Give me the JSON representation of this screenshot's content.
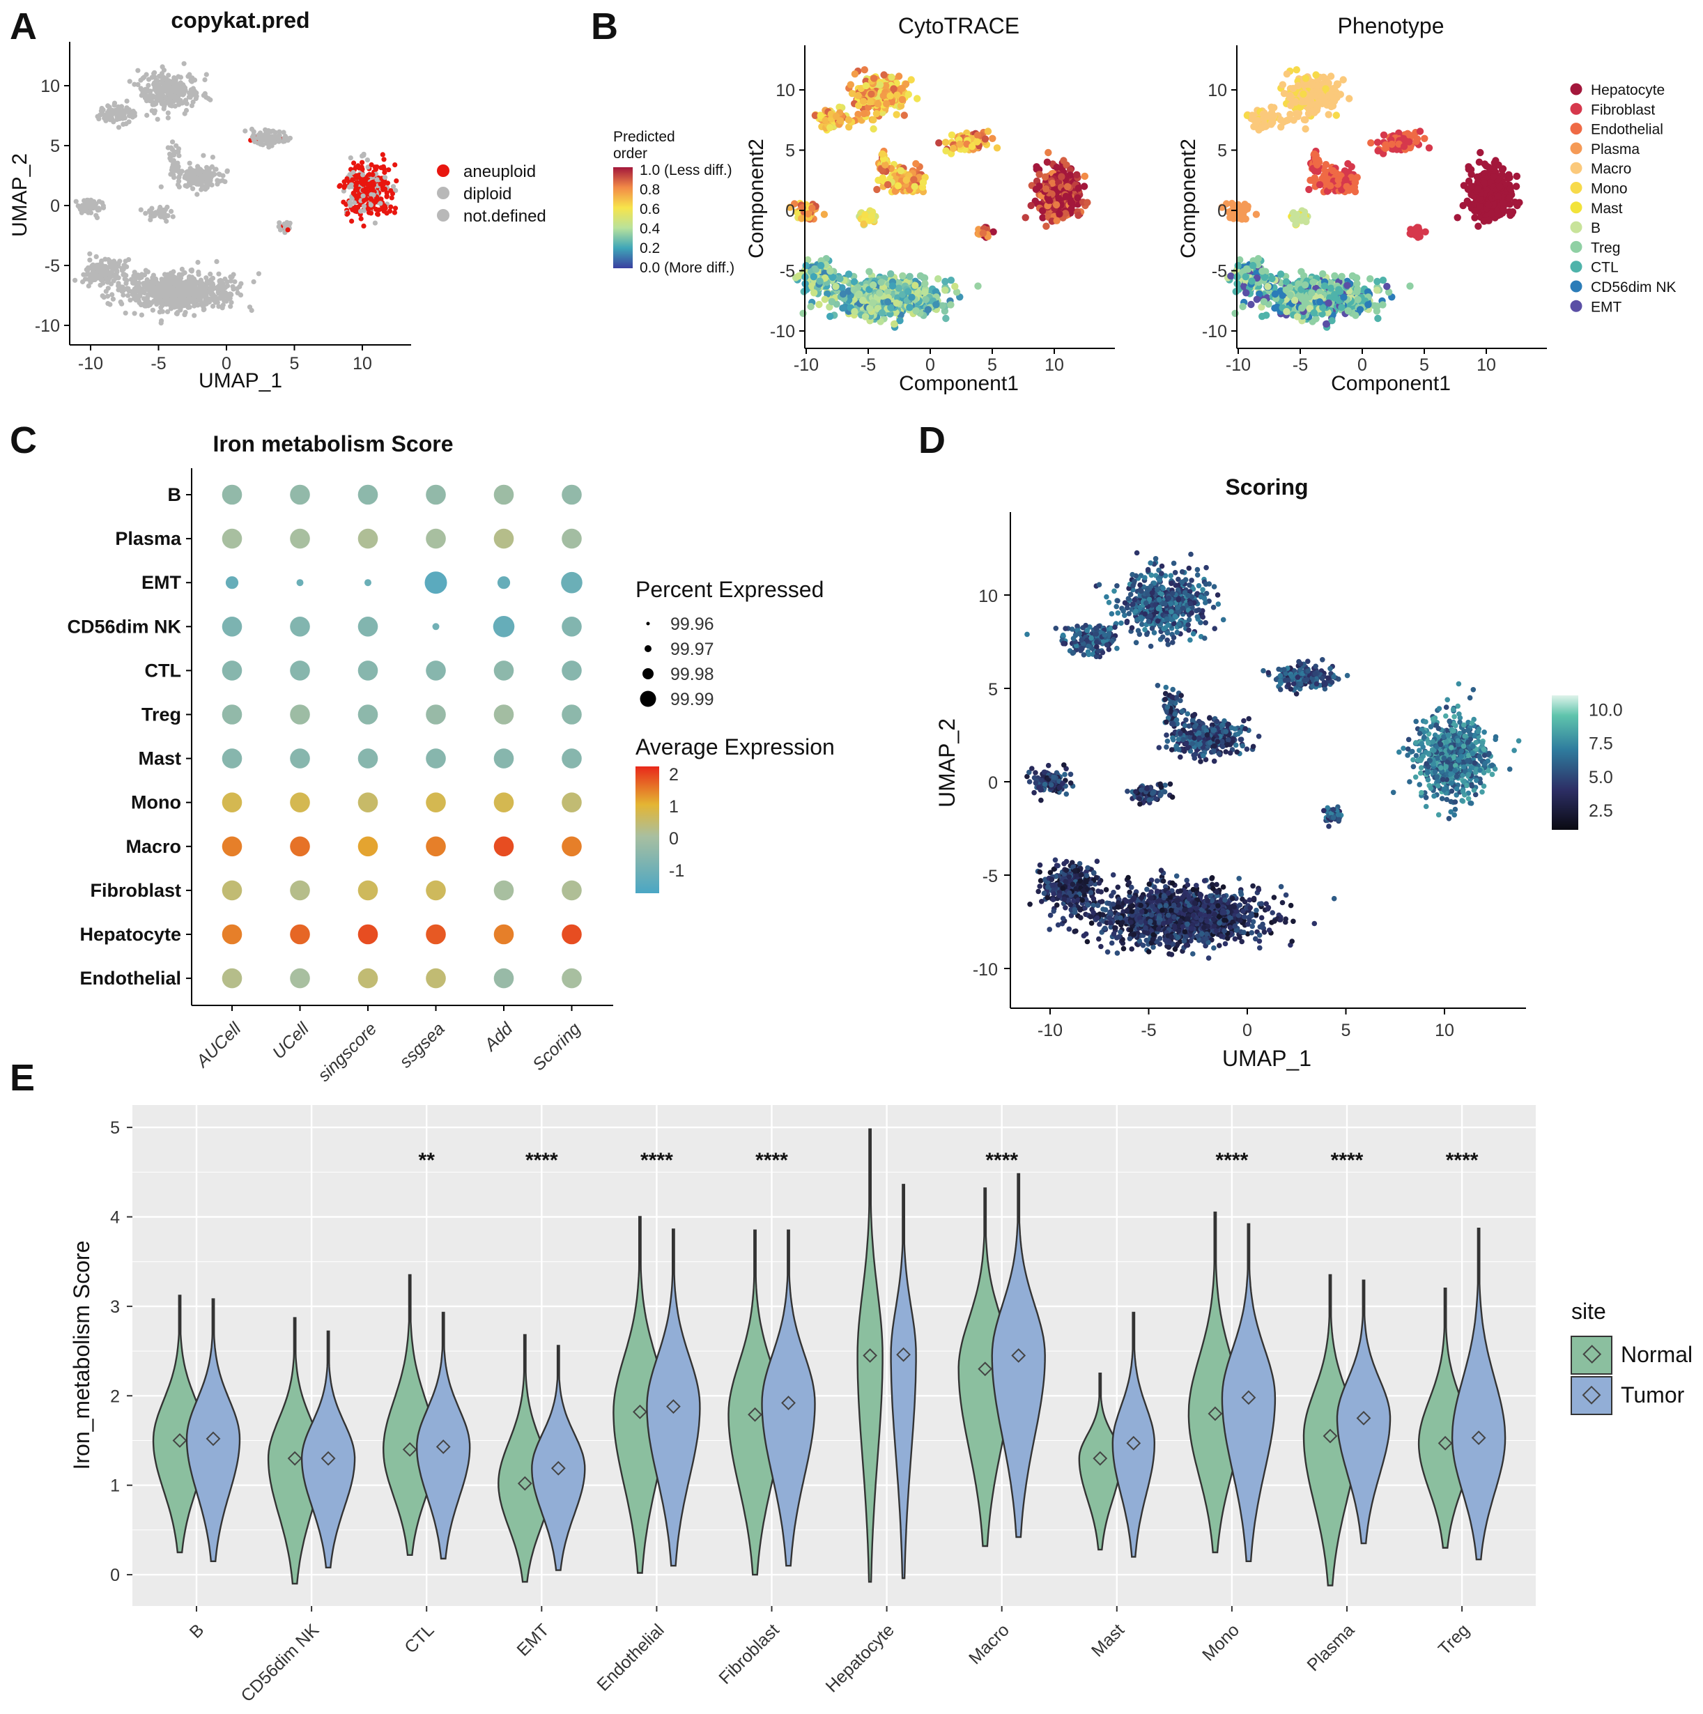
{
  "panel_labels": [
    "A",
    "B",
    "C",
    "D",
    "E"
  ],
  "chart_data": [
    {
      "id": "A",
      "type": "scatter",
      "title": "copykat.pred",
      "xlabel": "UMAP_1",
      "ylabel": "UMAP_2",
      "xlim": [
        -12,
        14
      ],
      "ylim": [
        -12,
        13
      ],
      "xticks": [
        "-10",
        "-5",
        "0",
        "5",
        "10"
      ],
      "yticks": [
        "10",
        "5",
        "0",
        "-5",
        "-10"
      ],
      "legend": [
        {
          "label": "aneuploid",
          "color": "#e8160f"
        },
        {
          "label": "diploid",
          "color": "#b8b8b8"
        },
        {
          "label": "not.defined",
          "color": "#b8b8b8"
        }
      ]
    },
    {
      "id": "B1",
      "type": "scatter",
      "title": "CytoTRACE",
      "xlabel": "Component1",
      "ylabel": "Component2",
      "xticks": [
        "-10",
        "-5",
        "0",
        "5",
        "10"
      ],
      "yticks": [
        "10",
        "5",
        "0",
        "-5",
        "-10"
      ],
      "colorbar": {
        "title": [
          "Predicted",
          "order"
        ],
        "ticks": [
          "1.0 (Less diff.)",
          "0.8",
          "0.6",
          "0.4",
          "0.2",
          "0.0 (More diff.)"
        ]
      }
    },
    {
      "id": "B2",
      "type": "scatter",
      "title": "Phenotype",
      "xlabel": "Component1",
      "ylabel": "Component2",
      "xticks": [
        "-10",
        "-5",
        "0",
        "5",
        "10"
      ],
      "yticks": [
        "10",
        "5",
        "0",
        "-5",
        "-10"
      ],
      "legend": [
        {
          "label": "Hepatocyte",
          "color": "#a3173b"
        },
        {
          "label": "Fibroblast",
          "color": "#d6384c"
        },
        {
          "label": "Endothelial",
          "color": "#ef6a45"
        },
        {
          "label": "Plasma",
          "color": "#f59a56"
        },
        {
          "label": "Macro",
          "color": "#fbc97b"
        },
        {
          "label": "Mono",
          "color": "#f7da4a"
        },
        {
          "label": "Mast",
          "color": "#f2e33a"
        },
        {
          "label": "B",
          "color": "#c8e39a"
        },
        {
          "label": "Treg",
          "color": "#8fd0a4"
        },
        {
          "label": "CTL",
          "color": "#4fb3aa"
        },
        {
          "label": "CD56dim NK",
          "color": "#2b7cb8"
        },
        {
          "label": "EMT",
          "color": "#5a4fa5"
        }
      ]
    },
    {
      "id": "C",
      "type": "dot",
      "title": "Iron metabolism Score",
      "rows": [
        "B",
        "Plasma",
        "EMT",
        "CD56dim NK",
        "CTL",
        "Treg",
        "Mast",
        "Mono",
        "Macro",
        "Fibroblast",
        "Hepatocyte",
        "Endothelial"
      ],
      "columns": [
        "AUCell",
        "UCell",
        "singscore",
        "ssgsea",
        "Add",
        "Scoring"
      ],
      "avg_expression": [
        [
          -0.2,
          -0.2,
          -0.3,
          -0.2,
          0.0,
          -0.2
        ],
        [
          0.2,
          0.2,
          0.3,
          0.2,
          0.4,
          0.1
        ],
        [
          -1.0,
          -0.9,
          -0.9,
          -1.2,
          -1.0,
          -0.9
        ],
        [
          -0.6,
          -0.5,
          -0.5,
          -0.8,
          -1.0,
          -0.5
        ],
        [
          -0.4,
          -0.4,
          -0.4,
          -0.4,
          -0.3,
          -0.4
        ],
        [
          -0.2,
          0.0,
          -0.3,
          -0.1,
          0.1,
          -0.3
        ],
        [
          -0.4,
          -0.4,
          -0.4,
          -0.4,
          -0.4,
          -0.4
        ],
        [
          0.9,
          0.9,
          0.7,
          0.9,
          0.9,
          0.6
        ],
        [
          1.6,
          1.7,
          1.3,
          1.6,
          2.0,
          1.6
        ],
        [
          0.6,
          0.4,
          0.8,
          0.8,
          0.2,
          0.3
        ],
        [
          1.6,
          1.8,
          2.0,
          1.9,
          1.6,
          2.0
        ],
        [
          0.4,
          0.2,
          0.6,
          0.6,
          -0.1,
          0.2
        ]
      ],
      "pct_expressed": [
        [
          99.985,
          99.985,
          99.985,
          99.985,
          99.985,
          99.985
        ],
        [
          99.985,
          99.985,
          99.985,
          99.985,
          99.985,
          99.985
        ],
        [
          99.97,
          99.958,
          99.958,
          99.99,
          99.97,
          99.988
        ],
        [
          99.985,
          99.985,
          99.985,
          99.958,
          99.988,
          99.985
        ],
        [
          99.985,
          99.985,
          99.985,
          99.985,
          99.985,
          99.985
        ],
        [
          99.985,
          99.985,
          99.985,
          99.985,
          99.985,
          99.985
        ],
        [
          99.985,
          99.985,
          99.985,
          99.985,
          99.985,
          99.985
        ],
        [
          99.985,
          99.985,
          99.985,
          99.985,
          99.985,
          99.985
        ],
        [
          99.985,
          99.985,
          99.985,
          99.985,
          99.985,
          99.985
        ],
        [
          99.985,
          99.985,
          99.985,
          99.985,
          99.985,
          99.985
        ],
        [
          99.985,
          99.985,
          99.985,
          99.985,
          99.985,
          99.985
        ],
        [
          99.985,
          99.985,
          99.985,
          99.985,
          99.985,
          99.985
        ]
      ],
      "size_legend": {
        "title": "Percent Expressed",
        "values": [
          "99.96",
          "99.97",
          "99.98",
          "99.99"
        ]
      },
      "color_legend": {
        "title": "Average Expression",
        "ticks": [
          "2",
          "1",
          "0",
          "-1"
        ],
        "range": [
          -1.5,
          2.3
        ]
      }
    },
    {
      "id": "D",
      "type": "scatter",
      "title": "Scoring",
      "xlabel": "UMAP_1",
      "ylabel": "UMAP_2",
      "xticks": [
        "-10",
        "-5",
        "0",
        "5",
        "10"
      ],
      "yticks": [
        "10",
        "5",
        "0",
        "-5",
        "-10"
      ],
      "colorbar": {
        "ticks": [
          "10.0",
          "7.5",
          "5.0",
          "2.5"
        ],
        "range": [
          1,
          11
        ]
      }
    },
    {
      "id": "E",
      "type": "violin",
      "ylabel": "Iron_metabolism Score",
      "ylim": [
        -0.35,
        5.25
      ],
      "yticks": [
        "0",
        "1",
        "2",
        "3",
        "4",
        "5"
      ],
      "categories": [
        "B",
        "CD56dim NK",
        "CTL",
        "EMT",
        "Endothelial",
        "Fibroblast",
        "Hepatocyte",
        "Macro",
        "Mast",
        "Mono",
        "Plasma",
        "Treg"
      ],
      "significance": [
        "",
        "",
        "**",
        "****",
        "****",
        "****",
        "",
        "****",
        "",
        "****",
        "****",
        "****"
      ],
      "legend_title": "site",
      "series": [
        {
          "name": "Normal",
          "color": "#8bbf9f",
          "mean": [
            1.5,
            1.3,
            1.4,
            1.02,
            1.82,
            1.79,
            2.45,
            2.3,
            1.3,
            1.8,
            1.55,
            1.47
          ],
          "min": [
            0.25,
            -0.1,
            0.22,
            -0.08,
            0.02,
            0.0,
            -0.08,
            0.32,
            0.28,
            0.25,
            -0.12,
            0.3
          ],
          "max": [
            3.12,
            2.87,
            3.35,
            2.68,
            4.0,
            3.85,
            4.98,
            4.32,
            2.25,
            4.05,
            3.35,
            3.2
          ]
        },
        {
          "name": "Tumor",
          "color": "#92aed6",
          "mean": [
            1.52,
            1.3,
            1.43,
            1.19,
            1.88,
            1.92,
            2.46,
            2.45,
            1.47,
            1.98,
            1.75,
            1.53
          ],
          "min": [
            0.15,
            0.08,
            0.18,
            0.05,
            0.1,
            0.1,
            -0.04,
            0.42,
            0.2,
            0.15,
            0.35,
            0.17
          ],
          "max": [
            3.08,
            2.72,
            2.93,
            2.56,
            3.86,
            3.85,
            4.36,
            4.48,
            2.93,
            3.92,
            3.29,
            3.87
          ]
        }
      ]
    }
  ]
}
